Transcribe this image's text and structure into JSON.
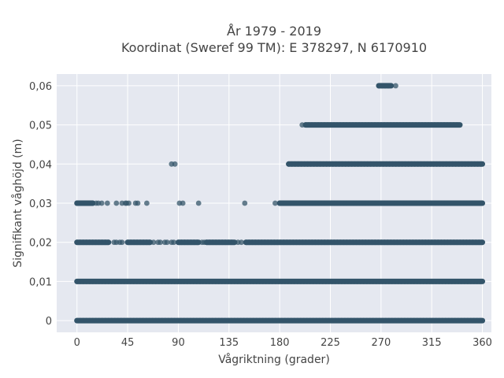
{
  "chart_data": {
    "type": "scatter",
    "title_line1": "År 1979 - 2019",
    "title_line2": "Koordinat (Sweref 99 TM): E 378297, N 6170910",
    "xlabel": "Vågriktning (grader)",
    "ylabel": "Signifikant våghöjd (m)",
    "xlim": [
      -18,
      368
    ],
    "ylim": [
      -0.003,
      0.063
    ],
    "xticks": [
      0,
      45,
      90,
      135,
      180,
      225,
      270,
      315,
      360
    ],
    "yticks": [
      0,
      0.01,
      0.02,
      0.03,
      0.04,
      0.05,
      0.06
    ],
    "ytick_labels": [
      "0",
      "0,01",
      "0,02",
      "0,03",
      "0,04",
      "0,05",
      "0,06"
    ],
    "grid": true,
    "marker_color": "#34556a",
    "plot_background": "#e5e8f0",
    "series": [
      {
        "y": 0,
        "segments": [
          [
            0,
            360
          ]
        ],
        "points": []
      },
      {
        "y": 0.01,
        "segments": [
          [
            0,
            360
          ]
        ],
        "points": []
      },
      {
        "y": 0.02,
        "segments": [
          [
            0,
            28
          ],
          [
            45,
            65
          ],
          [
            90,
            108
          ],
          [
            115,
            140
          ],
          [
            150,
            360
          ]
        ],
        "points": [
          33,
          35,
          38,
          40,
          68,
          72,
          74,
          78,
          80,
          84,
          86,
          111,
          113,
          143,
          146
        ]
      },
      {
        "y": 0.03,
        "segments": [
          [
            0,
            14
          ],
          [
            180,
            360
          ]
        ],
        "points": [
          17,
          19,
          22,
          27,
          35,
          40,
          43,
          44,
          46,
          52,
          54,
          62,
          91,
          94,
          108,
          149,
          176
        ]
      },
      {
        "y": 0.04,
        "segments": [
          [
            188,
            360
          ]
        ],
        "points": [
          84,
          87
        ]
      },
      {
        "y": 0.05,
        "segments": [
          [
            203,
            340
          ]
        ],
        "points": [
          200
        ]
      },
      {
        "y": 0.06,
        "segments": [
          [
            268,
            279
          ]
        ],
        "points": [
          283
        ]
      }
    ]
  }
}
